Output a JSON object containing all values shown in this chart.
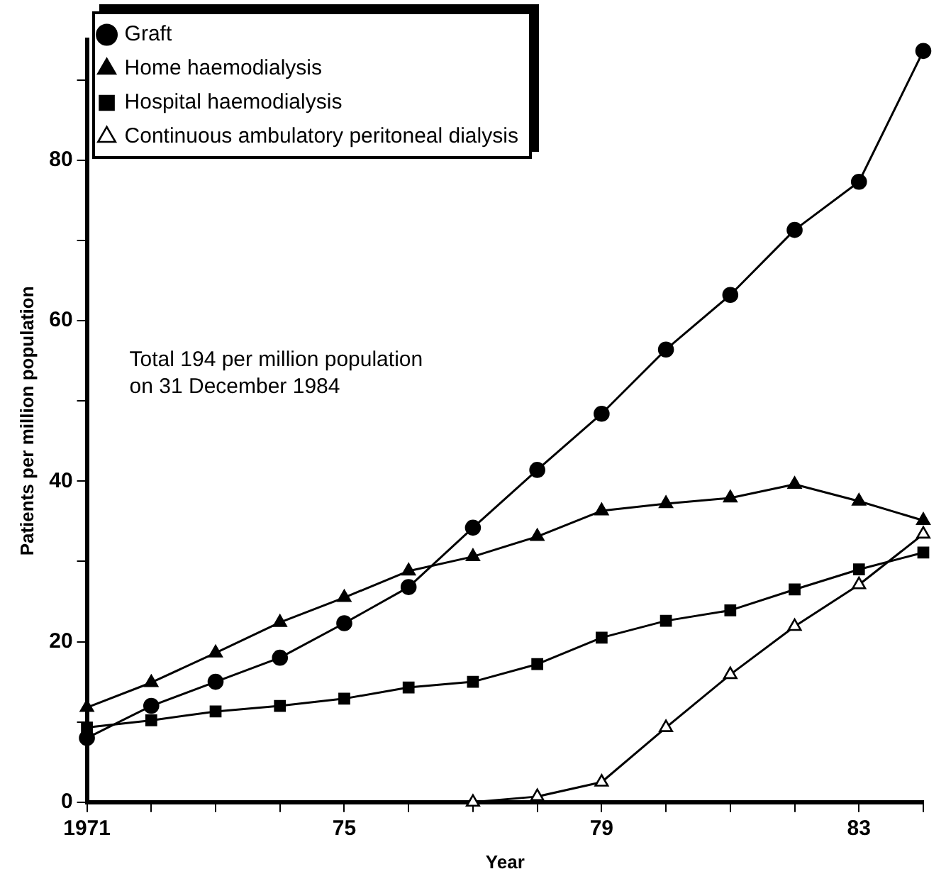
{
  "chart_data": {
    "type": "line",
    "xlabel": "Year",
    "ylabel": "Patients per million population",
    "x": [
      1971,
      1972,
      1973,
      1974,
      1975,
      1976,
      1977,
      1978,
      1979,
      1980,
      1981,
      1982,
      1983,
      1984
    ],
    "series": [
      {
        "name": "Graft",
        "color": "#000000",
        "marker": "circle",
        "values": [
          8,
          12,
          15,
          18,
          22.3,
          26.8,
          34.2,
          41.4,
          48.4,
          56.4,
          63.2,
          71.3,
          77.3,
          93.6
        ]
      },
      {
        "name": "Home haemodialysis",
        "color": "#000000",
        "marker": "triangle",
        "values": [
          11.8,
          14.9,
          18.6,
          22.4,
          25.5,
          28.8,
          30.6,
          33.1,
          36.3,
          37.2,
          37.9,
          39.6,
          37.5,
          35.1
        ]
      },
      {
        "name": "Hospital haemodialysis",
        "color": "#000000",
        "marker": "square",
        "values": [
          9.3,
          10.2,
          11.3,
          12,
          12.9,
          14.3,
          15,
          17.2,
          20.5,
          22.6,
          23.9,
          26.5,
          29,
          31.1
        ]
      },
      {
        "name": "Continuous ambulatory peritoneal dialysis",
        "color": "#000000",
        "marker": "triangle",
        "values": [
          null,
          null,
          null,
          null,
          null,
          null,
          0,
          0.7,
          2.5,
          9.3,
          15.9,
          21.9,
          27.1,
          33.4
        ]
      }
    ],
    "xlim": [
      1971,
      1984
    ],
    "xticks": [
      1971,
      {
        "value": 1972,
        "label": null
      },
      {
        "value": 1973,
        "label": null
      },
      {
        "value": 1974,
        "label": null
      },
      {
        "value": 1975,
        "label": "75"
      },
      {
        "value": 1976,
        "label": null
      },
      {
        "value": 1977,
        "label": null
      },
      {
        "value": 1978,
        "label": null
      },
      {
        "value": 1979,
        "label": "79"
      },
      {
        "value": 1980,
        "label": null
      },
      {
        "value": 1981,
        "label": null
      },
      {
        "value": 1982,
        "label": null
      },
      {
        "value": 1983,
        "label": "83"
      },
      {
        "value": 1984,
        "label": null
      }
    ],
    "ylim": [
      0,
      95
    ],
    "yticks": [
      0,
      {
        "value": 10,
        "label": null
      },
      20,
      {
        "value": 30,
        "label": null
      },
      40,
      {
        "value": 50,
        "label": null
      },
      60,
      {
        "value": 70,
        "label": null
      },
      80,
      {
        "value": 90,
        "label": null
      }
    ],
    "grid": false,
    "legend": "top left",
    "line_style": "solid",
    "annotations": [
      "Total 194 per million population\non 31 December 1984"
    ]
  }
}
